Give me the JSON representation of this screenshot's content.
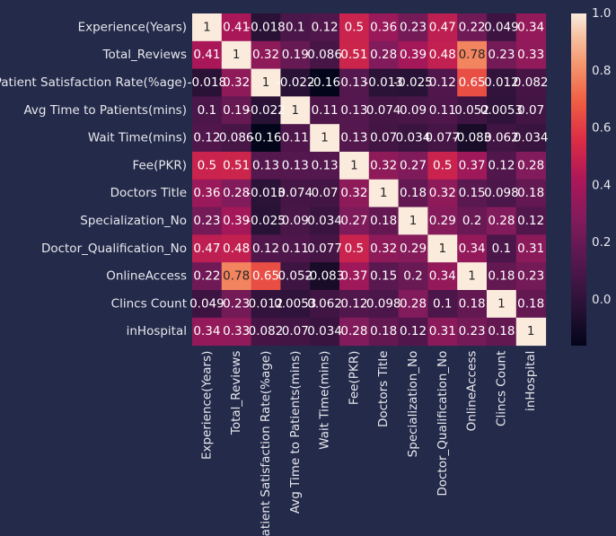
{
  "chart_data": {
    "type": "heatmap",
    "title": "",
    "xlabel": "",
    "ylabel": "",
    "labels": [
      "Experience(Years)",
      "Total_Reviews",
      "Patient Satisfaction Rate(%age)",
      "Avg Time to Patients(mins)",
      "Wait Time(mins)",
      "Fee(PKR)",
      "Doctors Title",
      "Specialization_No",
      "Doctor_Qualification_No",
      "OnlineAccess",
      "Clincs Count",
      "inHospital"
    ],
    "matrix": [
      [
        1,
        0.41,
        -0.018,
        0.1,
        0.12,
        0.5,
        0.36,
        0.23,
        0.47,
        0.22,
        0.049,
        0.34
      ],
      [
        0.41,
        1,
        0.32,
        0.19,
        0.086,
        0.51,
        0.28,
        0.39,
        0.48,
        0.78,
        0.23,
        0.33
      ],
      [
        -0.018,
        0.32,
        1,
        -0.022,
        -0.16,
        0.13,
        -0.013,
        -0.025,
        0.12,
        0.65,
        0.012,
        0.082
      ],
      [
        0.1,
        0.19,
        -0.022,
        1,
        0.11,
        0.13,
        0.074,
        0.09,
        0.11,
        0.052,
        0.0053,
        0.07
      ],
      [
        0.12,
        0.086,
        -0.16,
        0.11,
        1,
        0.13,
        0.07,
        0.034,
        0.077,
        -0.083,
        0.062,
        0.034
      ],
      [
        0.5,
        0.51,
        0.13,
        0.13,
        0.13,
        1,
        0.32,
        0.27,
        0.5,
        0.37,
        0.12,
        0.28
      ],
      [
        0.36,
        0.28,
        -0.013,
        0.074,
        0.07,
        0.32,
        1,
        0.18,
        0.32,
        0.15,
        0.098,
        0.18
      ],
      [
        0.23,
        0.39,
        -0.025,
        0.09,
        0.034,
        0.27,
        0.18,
        1,
        0.29,
        0.2,
        0.28,
        0.12
      ],
      [
        0.47,
        0.48,
        0.12,
        0.11,
        0.077,
        0.5,
        0.32,
        0.29,
        1,
        0.34,
        0.1,
        0.31
      ],
      [
        0.22,
        0.78,
        0.65,
        0.052,
        -0.083,
        0.37,
        0.15,
        0.2,
        0.34,
        1,
        0.18,
        0.23
      ],
      [
        0.049,
        0.23,
        0.012,
        0.0053,
        0.062,
        0.12,
        0.098,
        0.28,
        0.1,
        0.18,
        1,
        0.18
      ],
      [
        0.34,
        0.33,
        0.082,
        0.07,
        0.034,
        0.28,
        0.18,
        0.12,
        0.31,
        0.23,
        0.18,
        1
      ]
    ],
    "annotations": [
      [
        "1",
        "0.41",
        "-0.018",
        "0.1",
        "0.12",
        "0.5",
        "0.36",
        "0.23",
        "0.47",
        "0.22",
        "0.049",
        "0.34"
      ],
      [
        "0.41",
        "1",
        "0.32",
        "0.19",
        "0.086",
        "0.51",
        "0.28",
        "0.39",
        "0.48",
        "0.78",
        "0.23",
        "0.33"
      ],
      [
        "-0.018",
        "0.32",
        "1",
        "-0.022",
        "-0.16",
        "0.13",
        "-0.013",
        "-0.025",
        "0.12",
        "0.65",
        "0.012",
        "0.082"
      ],
      [
        "0.1",
        "0.19",
        "-0.022",
        "1",
        "0.11",
        "0.13",
        "0.074",
        "0.09",
        "0.11",
        "0.052",
        "0.0053",
        "0.07"
      ],
      [
        "0.12",
        "0.086",
        "-0.16",
        "0.11",
        "1",
        "0.13",
        "0.07",
        "0.034",
        "0.077",
        "-0.083",
        "0.062",
        "0.034"
      ],
      [
        "0.5",
        "0.51",
        "0.13",
        "0.13",
        "0.13",
        "1",
        "0.32",
        "0.27",
        "0.5",
        "0.37",
        "0.12",
        "0.28"
      ],
      [
        "0.36",
        "0.28",
        "-0.013",
        "0.074",
        "0.07",
        "0.32",
        "1",
        "0.18",
        "0.32",
        "0.15",
        "0.098",
        "0.18"
      ],
      [
        "0.23",
        "0.39",
        "-0.025",
        "0.09",
        "0.034",
        "0.27",
        "0.18",
        "1",
        "0.29",
        "0.2",
        "0.28",
        "0.12"
      ],
      [
        "0.47",
        "0.48",
        "0.12",
        "0.11",
        "0.077",
        "0.5",
        "0.32",
        "0.29",
        "1",
        "0.34",
        "0.1",
        "0.31"
      ],
      [
        "0.22",
        "0.78",
        "0.65",
        "0.052",
        "-0.083",
        "0.37",
        "0.15",
        "0.2",
        "0.34",
        "1",
        "0.18",
        "0.23"
      ],
      [
        "0.049",
        "0.23",
        "0.012",
        "0.0053",
        "0.062",
        "0.12",
        "0.098",
        "0.28",
        "0.1",
        "0.18",
        "1",
        "0.18"
      ],
      [
        "0.34",
        "0.33",
        "0.082",
        "0.07",
        "0.034",
        "0.28",
        "0.18",
        "0.12",
        "0.31",
        "0.23",
        "0.18",
        "1"
      ]
    ],
    "colorbar": {
      "range": [
        -0.16,
        1.0
      ],
      "ticks": [
        "0.0",
        "0.2",
        "0.4",
        "0.6",
        "0.8",
        "1.0"
      ],
      "tick_values": [
        0,
        0.2,
        0.4,
        0.6,
        0.8,
        1.0
      ],
      "colormap": "rocket"
    },
    "legend": "none",
    "grid": false
  },
  "colors": {
    "background": "#232a4a",
    "axis_text": "#e8e8ec"
  }
}
